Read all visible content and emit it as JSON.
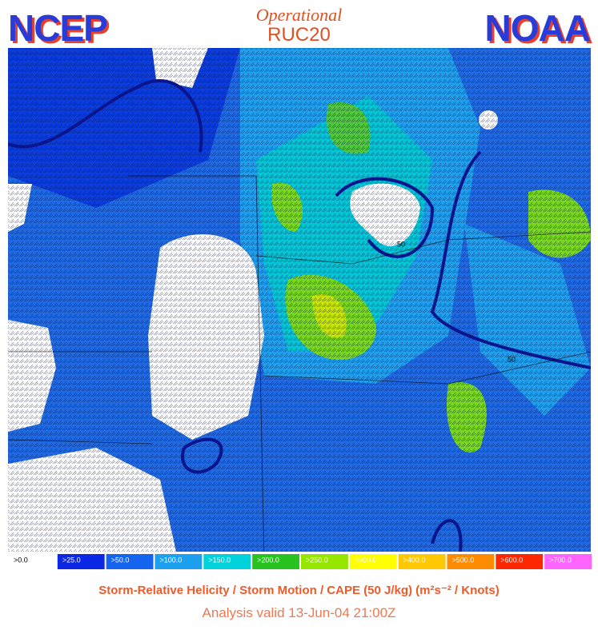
{
  "header": {
    "left": "NCEP",
    "subtitle": "Operational",
    "title": "RUC20",
    "right": "NOAA"
  },
  "map": {
    "contour_labels": [
      "50",
      "50"
    ]
  },
  "legend": [
    {
      "label": ">0.0",
      "color": "#ffffff"
    },
    {
      "label": ">25.0",
      "color": "#0a28e6"
    },
    {
      "label": ">50.0",
      "color": "#1464f0"
    },
    {
      "label": ">100.0",
      "color": "#1ea0f0"
    },
    {
      "label": ">150.0",
      "color": "#00d2dc"
    },
    {
      "label": ">200.0",
      "color": "#28c31e"
    },
    {
      "label": ">250.0",
      "color": "#96e600"
    },
    {
      "label": ">300.0",
      "color": "#ffff00"
    },
    {
      "label": ">400.0",
      "color": "#ffc800"
    },
    {
      "label": ">500.0",
      "color": "#ff8c00"
    },
    {
      "label": ">600.0",
      "color": "#ff2800"
    },
    {
      "label": ">700.0",
      "color": "#ff64ff"
    }
  ],
  "caption": {
    "line1": "Storm-Relative Helicity / Storm Motion / CAPE (50 J/kg)  (m²s⁻² / Knots)",
    "line2": "Analysis valid 13-Jun-04 21:00Z"
  }
}
